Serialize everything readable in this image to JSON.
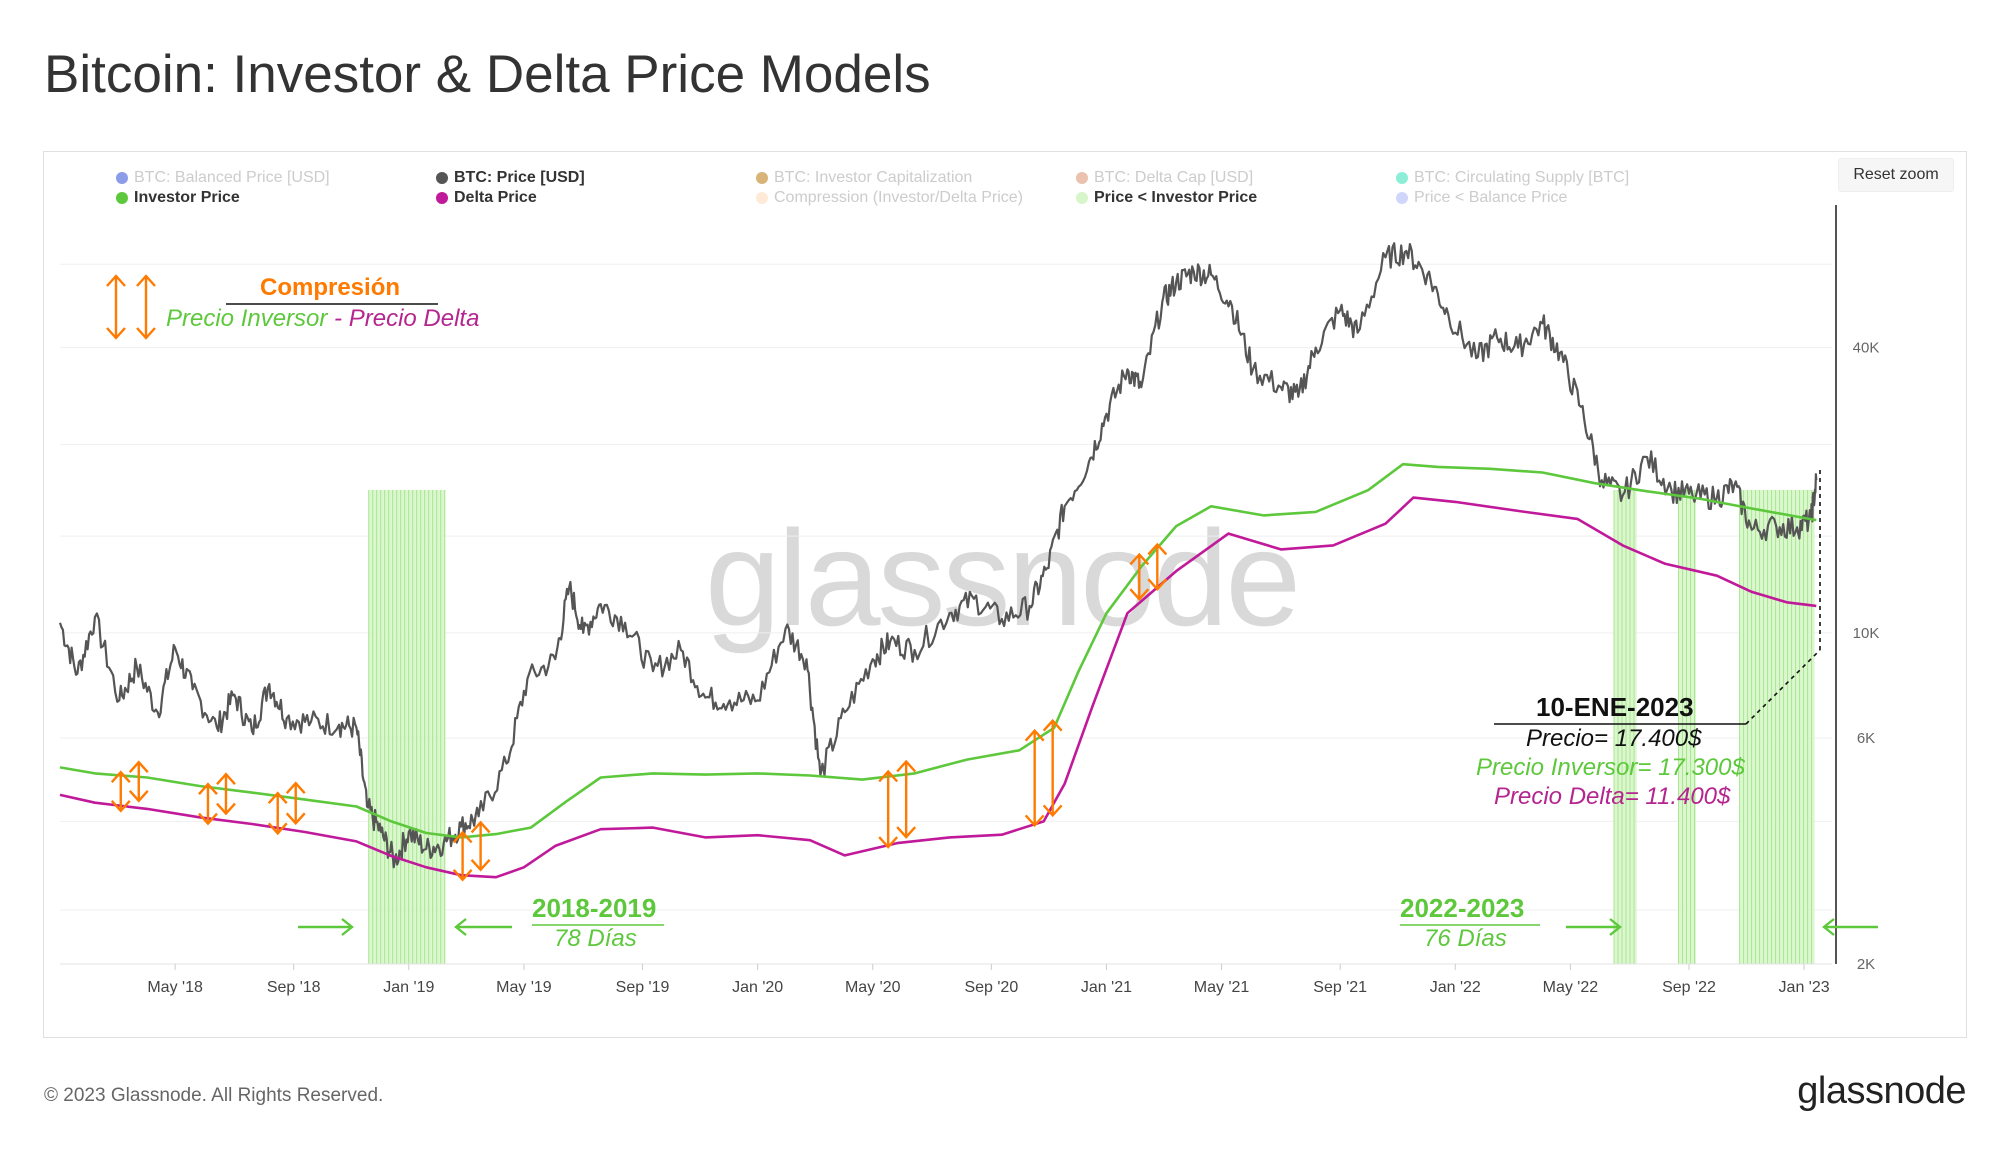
{
  "title": "Bitcoin: Investor & Delta Price Models",
  "reset_zoom": "Reset zoom",
  "watermark": "glassnode",
  "footer": {
    "copyright": "© 2023 Glassnode. All Rights Reserved.",
    "logo": "glassnode"
  },
  "legend": [
    {
      "label": "BTC: Balanced Price [USD]",
      "color": "#2b4bd6",
      "active": false
    },
    {
      "label": "BTC: Price [USD]",
      "color": "#555555",
      "active": true
    },
    {
      "label": "BTC: Investor Capitalization",
      "color": "#b8770b",
      "active": false
    },
    {
      "label": "BTC: Delta Cap [USD]",
      "color": "#d9906a",
      "active": false
    },
    {
      "label": "BTC: Circulating Supply [BTC]",
      "color": "#2de0b5",
      "active": false
    },
    {
      "label": "Investor Price",
      "color": "#5dc83c",
      "active": true
    },
    {
      "label": "Delta Price",
      "color": "#c0199a",
      "active": true
    },
    {
      "label": "Compression (Investor/Delta Price)",
      "color": "#ffd9b8",
      "active": false
    },
    {
      "label": "Price < Investor Price",
      "color": "#d6f5c8",
      "active": true
    },
    {
      "label": "Price < Balance Price",
      "color": "#aab5f5",
      "active": false
    }
  ],
  "annotations": {
    "compression_title": "Compresión",
    "compression_investor": "Precio Inversor",
    "compression_dash": " - ",
    "compression_delta": "Precio Delta",
    "period1_title": "2018-2019",
    "period1_days": "78 Días",
    "period2_title": "2022-2023",
    "period2_days": "76 Días",
    "date_title": "10-ENE-2023",
    "price_line": "Precio= 17.400$",
    "investor_line": "Precio Inversor= 17.300$",
    "delta_line": "Precio Delta= 11.400$"
  },
  "chart_data": {
    "type": "line",
    "title": "Bitcoin: Investor & Delta Price Models",
    "y_scale": "log",
    "ylim": [
      2000,
      80000
    ],
    "y_ticks": [
      {
        "value": 2000,
        "label": "2K"
      },
      {
        "value": 6000,
        "label": "6K"
      },
      {
        "value": 10000,
        "label": "10K"
      },
      {
        "value": 40000,
        "label": "40K"
      }
    ],
    "x_range": [
      2018.0,
      2023.08
    ],
    "x_ticks": [
      {
        "value": 2018.33,
        "label": "May '18"
      },
      {
        "value": 2018.67,
        "label": "Sep '18"
      },
      {
        "value": 2019.0,
        "label": "Jan '19"
      },
      {
        "value": 2019.33,
        "label": "May '19"
      },
      {
        "value": 2019.67,
        "label": "Sep '19"
      },
      {
        "value": 2020.0,
        "label": "Jan '20"
      },
      {
        "value": 2020.33,
        "label": "May '20"
      },
      {
        "value": 2020.67,
        "label": "Sep '20"
      },
      {
        "value": 2021.0,
        "label": "Jan '21"
      },
      {
        "value": 2021.33,
        "label": "May '21"
      },
      {
        "value": 2021.67,
        "label": "Sep '21"
      },
      {
        "value": 2022.0,
        "label": "Jan '22"
      },
      {
        "value": 2022.33,
        "label": "May '22"
      },
      {
        "value": 2022.67,
        "label": "Sep '22"
      },
      {
        "value": 2023.0,
        "label": "Jan '23"
      }
    ],
    "series": [
      {
        "name": "BTC: Price [USD]",
        "color": "#555555",
        "points": [
          [
            2018.0,
            10500
          ],
          [
            2018.05,
            8200
          ],
          [
            2018.1,
            10800
          ],
          [
            2018.17,
            7200
          ],
          [
            2018.22,
            8500
          ],
          [
            2018.28,
            6800
          ],
          [
            2018.33,
            9300
          ],
          [
            2018.38,
            7600
          ],
          [
            2018.45,
            6300
          ],
          [
            2018.5,
            7400
          ],
          [
            2018.55,
            6200
          ],
          [
            2018.6,
            7800
          ],
          [
            2018.65,
            6600
          ],
          [
            2018.72,
            6500
          ],
          [
            2018.8,
            6400
          ],
          [
            2018.85,
            6300
          ],
          [
            2018.88,
            4300
          ],
          [
            2018.92,
            3800
          ],
          [
            2018.96,
            3300
          ],
          [
            2019.0,
            3800
          ],
          [
            2019.05,
            3500
          ],
          [
            2019.1,
            3600
          ],
          [
            2019.15,
            3900
          ],
          [
            2019.2,
            4100
          ],
          [
            2019.28,
            5300
          ],
          [
            2019.34,
            8000
          ],
          [
            2019.42,
            8800
          ],
          [
            2019.46,
            12500
          ],
          [
            2019.5,
            10000
          ],
          [
            2019.55,
            11500
          ],
          [
            2019.62,
            10500
          ],
          [
            2019.7,
            8300
          ],
          [
            2019.78,
            9200
          ],
          [
            2019.85,
            7300
          ],
          [
            2019.92,
            7200
          ],
          [
            2020.0,
            7200
          ],
          [
            2020.08,
            10200
          ],
          [
            2020.14,
            8800
          ],
          [
            2020.18,
            5000
          ],
          [
            2020.25,
            6800
          ],
          [
            2020.33,
            8800
          ],
          [
            2020.38,
            9600
          ],
          [
            2020.45,
            9200
          ],
          [
            2020.55,
            11000
          ],
          [
            2020.62,
            11800
          ],
          [
            2020.7,
            10700
          ],
          [
            2020.78,
            11400
          ],
          [
            2020.83,
            13700
          ],
          [
            2020.88,
            18500
          ],
          [
            2020.95,
            23000
          ],
          [
            2021.0,
            29000
          ],
          [
            2021.06,
            36000
          ],
          [
            2021.1,
            33000
          ],
          [
            2021.16,
            50000
          ],
          [
            2021.2,
            55000
          ],
          [
            2021.25,
            58000
          ],
          [
            2021.3,
            57000
          ],
          [
            2021.36,
            49000
          ],
          [
            2021.42,
            36000
          ],
          [
            2021.5,
            33000
          ],
          [
            2021.55,
            31500
          ],
          [
            2021.6,
            40000
          ],
          [
            2021.67,
            48000
          ],
          [
            2021.72,
            43000
          ],
          [
            2021.8,
            62000
          ],
          [
            2021.86,
            64000
          ],
          [
            2021.92,
            57000
          ],
          [
            2021.98,
            47000
          ],
          [
            2022.06,
            38000
          ],
          [
            2022.12,
            42000
          ],
          [
            2022.18,
            40000
          ],
          [
            2022.25,
            45000
          ],
          [
            2022.3,
            39000
          ],
          [
            2022.36,
            30000
          ],
          [
            2022.42,
            21000
          ],
          [
            2022.48,
            19500
          ],
          [
            2022.55,
            23500
          ],
          [
            2022.62,
            20000
          ],
          [
            2022.68,
            19500
          ],
          [
            2022.75,
            19300
          ],
          [
            2022.8,
            20500
          ],
          [
            2022.85,
            16500
          ],
          [
            2022.92,
            16800
          ],
          [
            2022.98,
            16700
          ],
          [
            2023.02,
            17400
          ],
          [
            2023.035,
            21000
          ]
        ]
      },
      {
        "name": "Investor Price",
        "color": "#5dc83c",
        "points": [
          [
            2018.0,
            5200
          ],
          [
            2018.1,
            5050
          ],
          [
            2018.25,
            4950
          ],
          [
            2018.4,
            4750
          ],
          [
            2018.55,
            4600
          ],
          [
            2018.7,
            4450
          ],
          [
            2018.85,
            4300
          ],
          [
            2018.95,
            4000
          ],
          [
            2019.05,
            3780
          ],
          [
            2019.15,
            3700
          ],
          [
            2019.25,
            3760
          ],
          [
            2019.35,
            3880
          ],
          [
            2019.45,
            4400
          ],
          [
            2019.55,
            4950
          ],
          [
            2019.7,
            5050
          ],
          [
            2019.85,
            5020
          ],
          [
            2020.0,
            5050
          ],
          [
            2020.15,
            5000
          ],
          [
            2020.3,
            4900
          ],
          [
            2020.45,
            5050
          ],
          [
            2020.6,
            5400
          ],
          [
            2020.75,
            5650
          ],
          [
            2020.85,
            6300
          ],
          [
            2020.92,
            8300
          ],
          [
            2021.0,
            11000
          ],
          [
            2021.1,
            13800
          ],
          [
            2021.2,
            16800
          ],
          [
            2021.3,
            18500
          ],
          [
            2021.45,
            17700
          ],
          [
            2021.6,
            18000
          ],
          [
            2021.75,
            20000
          ],
          [
            2021.85,
            22700
          ],
          [
            2021.95,
            22400
          ],
          [
            2022.1,
            22200
          ],
          [
            2022.25,
            21800
          ],
          [
            2022.4,
            20700
          ],
          [
            2022.55,
            19900
          ],
          [
            2022.7,
            19200
          ],
          [
            2022.85,
            18300
          ],
          [
            2023.035,
            17300
          ]
        ]
      },
      {
        "name": "Delta Price",
        "color": "#c0199a",
        "points": [
          [
            2018.0,
            4550
          ],
          [
            2018.1,
            4380
          ],
          [
            2018.25,
            4250
          ],
          [
            2018.4,
            4080
          ],
          [
            2018.55,
            3950
          ],
          [
            2018.7,
            3800
          ],
          [
            2018.85,
            3630
          ],
          [
            2018.95,
            3380
          ],
          [
            2019.05,
            3200
          ],
          [
            2019.15,
            3080
          ],
          [
            2019.25,
            3050
          ],
          [
            2019.33,
            3200
          ],
          [
            2019.42,
            3550
          ],
          [
            2019.55,
            3850
          ],
          [
            2019.7,
            3880
          ],
          [
            2019.85,
            3700
          ],
          [
            2020.0,
            3740
          ],
          [
            2020.15,
            3650
          ],
          [
            2020.25,
            3390
          ],
          [
            2020.4,
            3600
          ],
          [
            2020.55,
            3700
          ],
          [
            2020.7,
            3750
          ],
          [
            2020.82,
            4000
          ],
          [
            2020.88,
            4800
          ],
          [
            2020.96,
            7000
          ],
          [
            2021.06,
            11000
          ],
          [
            2021.2,
            13500
          ],
          [
            2021.35,
            16200
          ],
          [
            2021.5,
            15000
          ],
          [
            2021.65,
            15300
          ],
          [
            2021.8,
            17000
          ],
          [
            2021.88,
            19300
          ],
          [
            2022.0,
            18900
          ],
          [
            2022.2,
            18000
          ],
          [
            2022.35,
            17400
          ],
          [
            2022.48,
            15300
          ],
          [
            2022.6,
            14000
          ],
          [
            2022.75,
            13200
          ],
          [
            2022.85,
            12200
          ],
          [
            2022.95,
            11600
          ],
          [
            2023.035,
            11400
          ]
        ]
      }
    ],
    "shaded_periods": [
      {
        "name": "Price < Investor Price 2018-2019",
        "start": 2018.885,
        "end": 2019.105
      },
      {
        "name": "Price < Investor Price 2022-2023",
        "start": 2022.455,
        "end": 2022.52
      },
      {
        "name": "Price < Investor Price 2022-2023",
        "start": 2022.64,
        "end": 2022.69
      },
      {
        "name": "Price < Investor Price 2022-2023",
        "start": 2022.815,
        "end": 2023.03
      }
    ],
    "compression_markers": [
      2018.2,
      2018.45,
      2018.65,
      2019.18,
      2020.4,
      2020.82,
      2021.12
    ]
  }
}
